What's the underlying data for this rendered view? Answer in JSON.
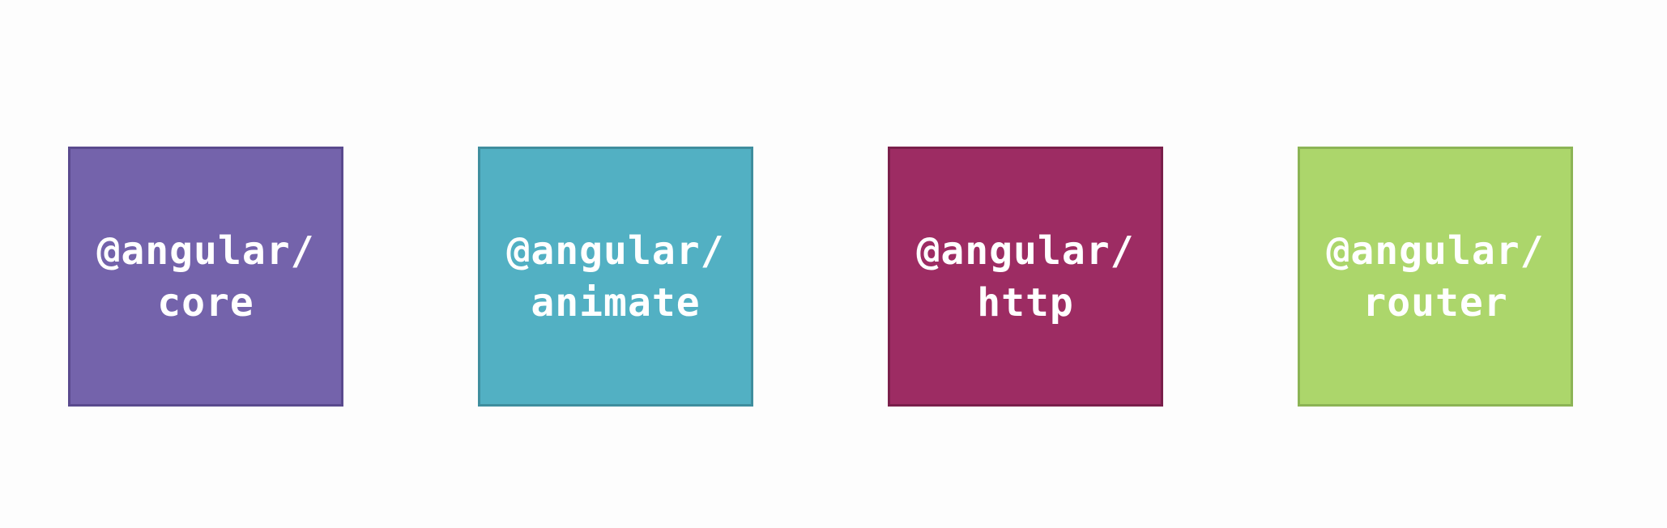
{
  "modules": [
    {
      "line1": "@angular/",
      "line2": "core",
      "fill": "#7463ab",
      "border": "#5a4a8e"
    },
    {
      "line1": "@angular/",
      "line2": "animate",
      "fill": "#52b0c3",
      "border": "#3f8e9e"
    },
    {
      "line1": "@angular/",
      "line2": "http",
      "fill": "#9d2c63",
      "border": "#7a1f4b"
    },
    {
      "line1": "@angular/",
      "line2": "router",
      "fill": "#acd66b",
      "border": "#8cb455"
    }
  ]
}
